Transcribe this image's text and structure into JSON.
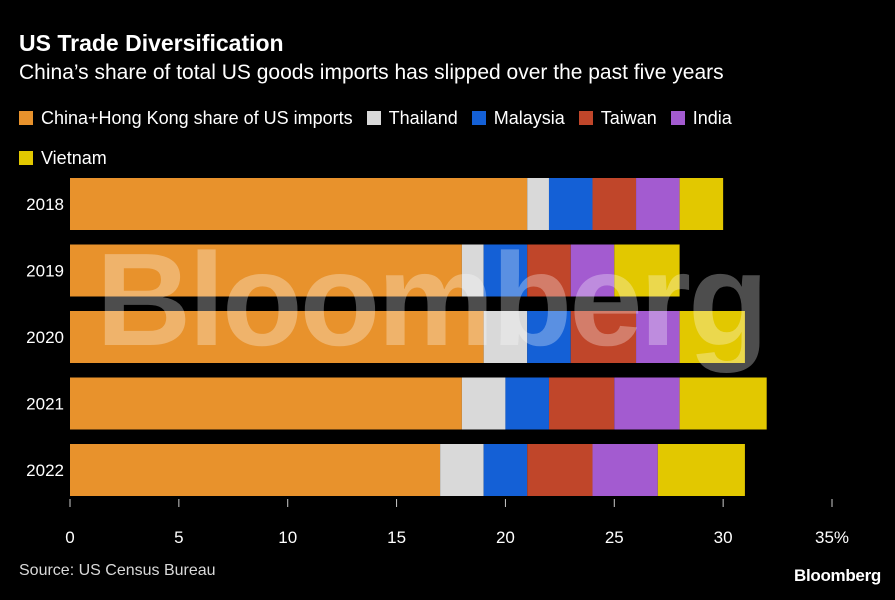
{
  "title": "US Trade Diversification",
  "subtitle": "China’s share of total US goods imports has slipped over the past five years",
  "source": "Source: US Census Bureau",
  "brand": "Bloomberg",
  "watermark": "Bloomberg",
  "colors": {
    "background": "#000000",
    "china": "#e8922c",
    "thailand": "#d9d9d9",
    "malaysia": "#1460d6",
    "taiwan": "#c0462a",
    "india": "#a35bd0",
    "vietnam": "#e2c800"
  },
  "chart_data": {
    "type": "bar",
    "orientation": "horizontal",
    "stacked": true,
    "title": "US Trade Diversification",
    "subtitle": "China’s share of total US goods imports has slipped over the past five years",
    "categories": [
      "2018",
      "2019",
      "2020",
      "2021",
      "2022"
    ],
    "series": [
      {
        "name": "China+Hong Kong share of US imports",
        "color": "#e8922c",
        "values": [
          21,
          18,
          19,
          18,
          17
        ]
      },
      {
        "name": "Thailand",
        "color": "#d9d9d9",
        "values": [
          1,
          1,
          2,
          2,
          2
        ]
      },
      {
        "name": "Malaysia",
        "color": "#1460d6",
        "values": [
          2,
          2,
          2,
          2,
          2
        ]
      },
      {
        "name": "Taiwan",
        "color": "#c0462a",
        "values": [
          2,
          2,
          3,
          3,
          3
        ]
      },
      {
        "name": "India",
        "color": "#a35bd0",
        "values": [
          2,
          2,
          2,
          3,
          3
        ]
      },
      {
        "name": "Vietnam",
        "color": "#e2c800",
        "values": [
          2,
          3,
          3,
          4,
          4
        ]
      }
    ],
    "xlim": [
      0,
      35
    ],
    "xticks": [
      "0",
      "5",
      "10",
      "15",
      "20",
      "25",
      "30",
      "35%"
    ],
    "xtick_values": [
      0,
      5,
      10,
      15,
      20,
      25,
      30,
      35
    ],
    "legend_position": "top",
    "grid": false
  }
}
